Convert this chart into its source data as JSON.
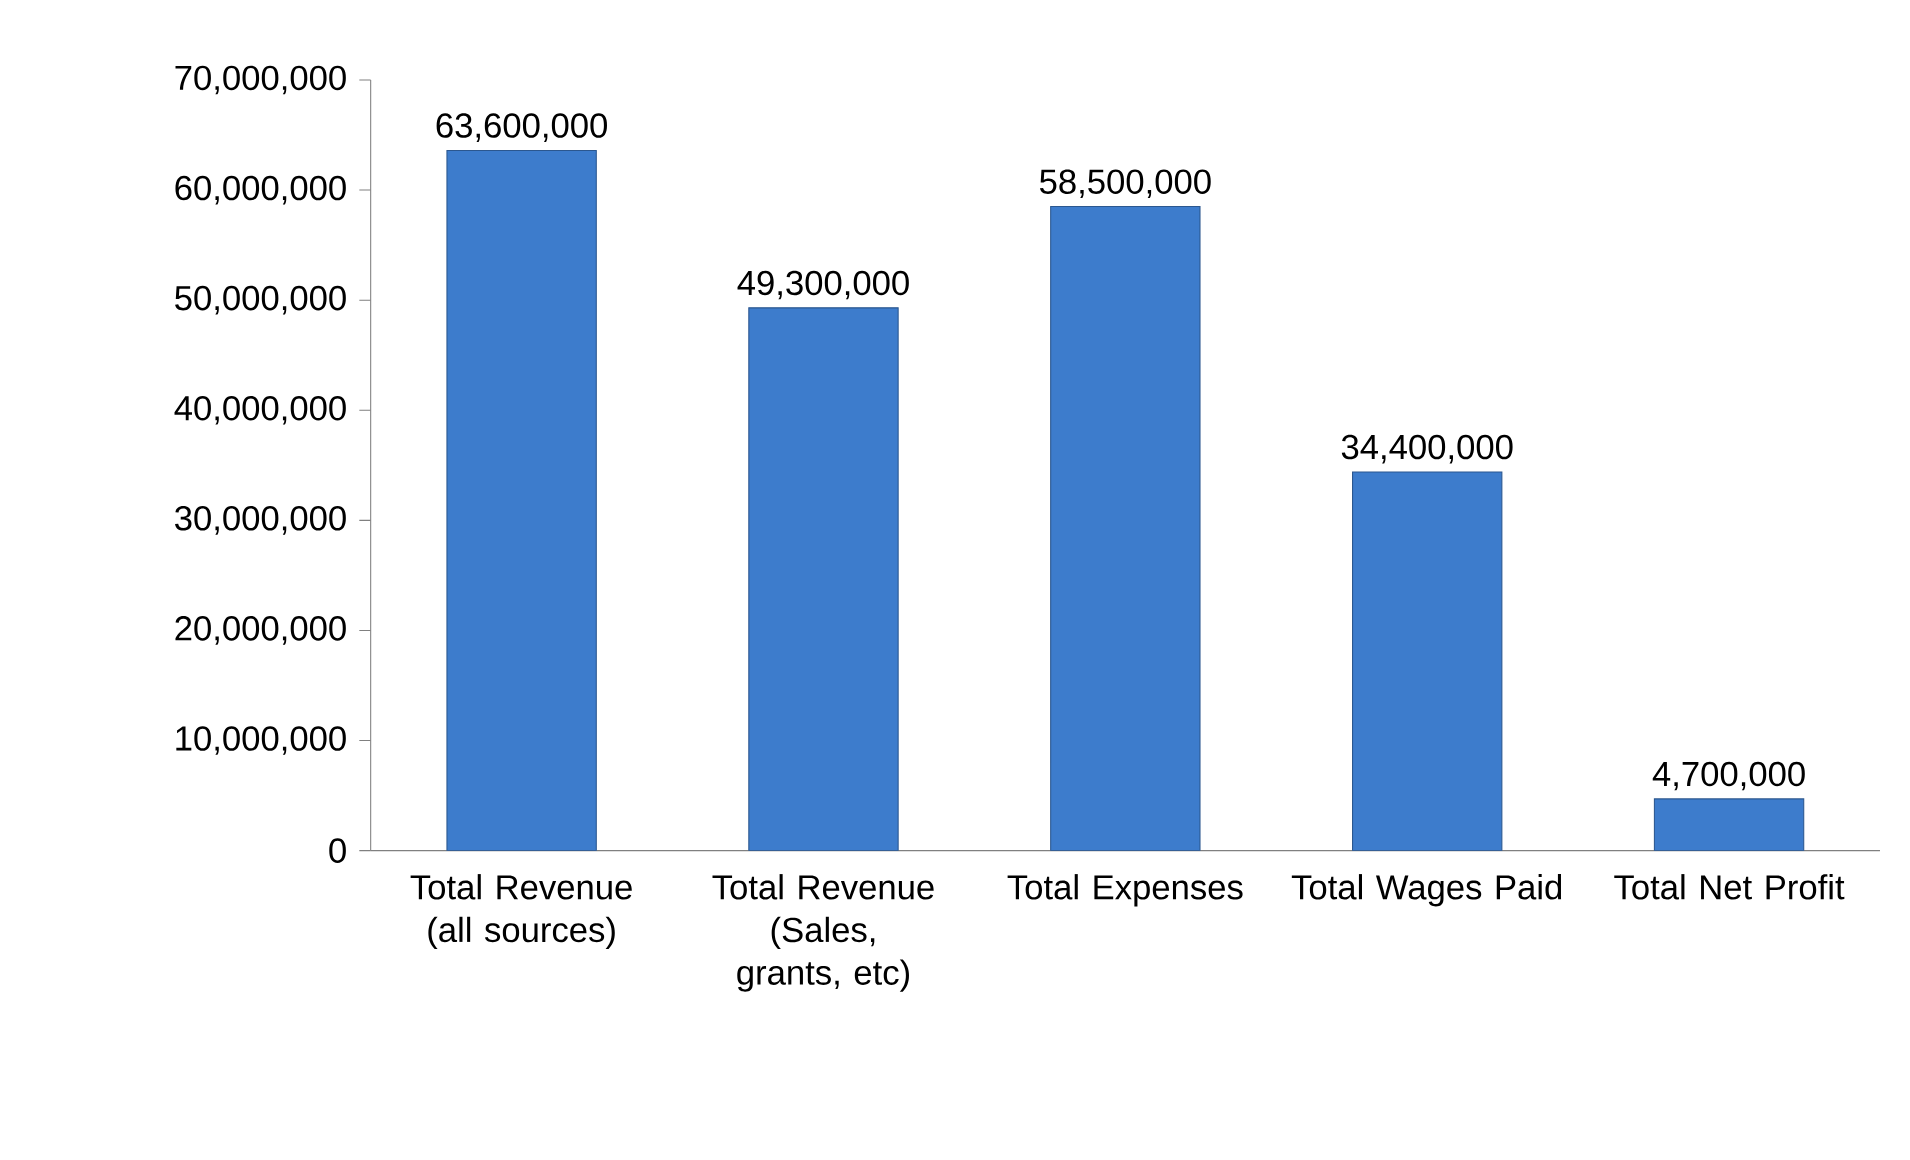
{
  "chart_data": {
    "type": "bar",
    "categories": [
      "Total Revenue (all sources)",
      "Total Revenue (Sales, grants, etc)",
      "Total Expenses",
      "Total Wages Paid",
      "Total Net Profit"
    ],
    "values": [
      63600000,
      49300000,
      58500000,
      34400000,
      4700000
    ],
    "value_labels": [
      "63,600,000",
      "49,300,000",
      "58,500,000",
      "34,400,000",
      "4,700,000"
    ],
    "color": "#3d7ccc",
    "ylim": [
      0,
      70000000
    ],
    "yticks": [
      {
        "value": 0,
        "label": "0"
      },
      {
        "value": 10000000,
        "label": "10,000,000"
      },
      {
        "value": 20000000,
        "label": "20,000,000"
      },
      {
        "value": 30000000,
        "label": "30,000,000"
      },
      {
        "value": 40000000,
        "label": "40,000,000"
      },
      {
        "value": 50000000,
        "label": "50,000,000"
      },
      {
        "value": 60000000,
        "label": "60,000,000"
      },
      {
        "value": 70000000,
        "label": "70,000,000"
      }
    ],
    "grid": false
  }
}
